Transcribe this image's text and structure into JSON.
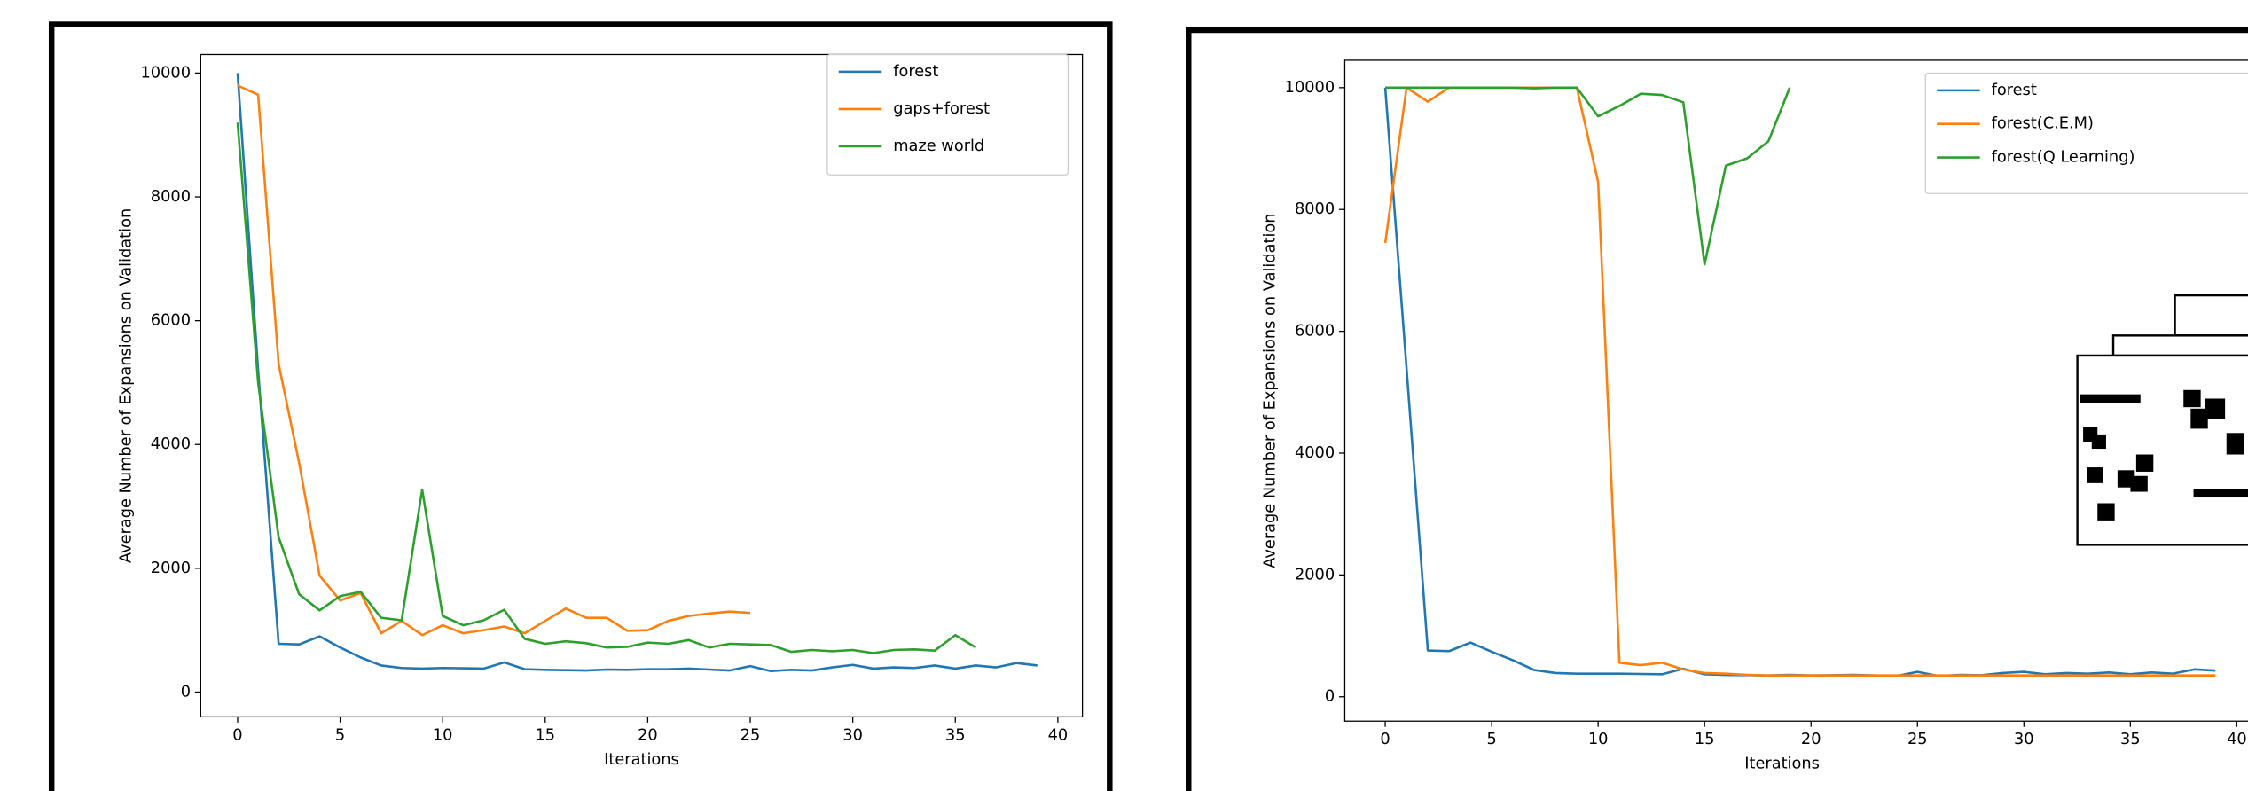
{
  "chart_data": [
    {
      "type": "line",
      "xlabel": "Iterations",
      "ylabel": "Average Number of Expansions on Validation",
      "xlim": [
        -1.8,
        41.2
      ],
      "ylim": [
        -400,
        10300
      ],
      "xticks": [
        0,
        5,
        10,
        15,
        20,
        25,
        30,
        35,
        40
      ],
      "yticks": [
        0,
        2000,
        4000,
        6000,
        8000,
        10000
      ],
      "legend": "upper right",
      "series": [
        {
          "name": "forest",
          "color": "#1f77b4",
          "x": [
            0,
            1,
            2,
            3,
            4,
            5,
            6,
            7,
            8,
            9,
            10,
            11,
            12,
            13,
            14,
            15,
            16,
            17,
            18,
            19,
            20,
            21,
            22,
            23,
            24,
            25,
            26,
            27,
            28,
            29,
            30,
            31,
            32,
            33,
            34,
            35,
            36,
            37,
            38,
            39
          ],
          "values": [
            10000,
            5200,
            780,
            770,
            900,
            720,
            560,
            430,
            390,
            380,
            390,
            385,
            380,
            480,
            370,
            360,
            355,
            350,
            365,
            360,
            370,
            370,
            380,
            365,
            350,
            420,
            340,
            360,
            350,
            400,
            440,
            380,
            400,
            390,
            430,
            380,
            430,
            400,
            470,
            430
          ]
        },
        {
          "name": "gaps+forest",
          "color": "#ff7f0e",
          "x": [
            0,
            1,
            2,
            3,
            4,
            5,
            6,
            7,
            8,
            9,
            10,
            11,
            12,
            13,
            14,
            15,
            16,
            17,
            18,
            19,
            20,
            21,
            22,
            23,
            24,
            25
          ],
          "values": [
            9800,
            9650,
            5300,
            3700,
            1880,
            1480,
            1600,
            950,
            1150,
            920,
            1080,
            950,
            1000,
            1060,
            950,
            1150,
            1350,
            1200,
            1200,
            990,
            1000,
            1150,
            1230,
            1270,
            1300,
            1280
          ]
        },
        {
          "name": "maze world",
          "color": "#2ca02c",
          "x": [
            0,
            1,
            2,
            3,
            4,
            5,
            6,
            7,
            8,
            9,
            10,
            11,
            12,
            13,
            14,
            15,
            16,
            17,
            18,
            19,
            20,
            21,
            22,
            23,
            24,
            25,
            26,
            27,
            28,
            29,
            30,
            31,
            32,
            33,
            34,
            35,
            36
          ],
          "values": [
            9200,
            5000,
            2500,
            1580,
            1320,
            1550,
            1620,
            1200,
            1160,
            3270,
            1230,
            1080,
            1160,
            1330,
            860,
            780,
            820,
            790,
            720,
            730,
            800,
            780,
            840,
            720,
            780,
            770,
            760,
            650,
            680,
            660,
            680,
            630,
            680,
            690,
            670,
            920,
            720
          ]
        }
      ]
    },
    {
      "type": "line",
      "xlabel": "Iterations",
      "ylabel": "Average Number of Expansions on Validation",
      "xlim": [
        -1.9,
        40.95
      ],
      "ylim": [
        -400,
        10450
      ],
      "xticks": [
        0,
        5,
        10,
        15,
        20,
        25,
        30,
        35,
        40
      ],
      "yticks": [
        0,
        2000,
        4000,
        6000,
        8000,
        10000
      ],
      "legend": "upper right",
      "series": [
        {
          "name": "forest",
          "color": "#1f77b4",
          "x": [
            0,
            1,
            2,
            3,
            4,
            5,
            6,
            7,
            8,
            9,
            10,
            11,
            12,
            13,
            14,
            15,
            16,
            17,
            18,
            19,
            20,
            21,
            22,
            23,
            24,
            25,
            26,
            27,
            28,
            29,
            30,
            31,
            32,
            33,
            34,
            35,
            36,
            37,
            38,
            39
          ],
          "values": [
            10000,
            5400,
            760,
            750,
            890,
            740,
            600,
            440,
            390,
            380,
            380,
            380,
            375,
            370,
            460,
            370,
            360,
            355,
            350,
            360,
            350,
            355,
            360,
            350,
            340,
            410,
            340,
            360,
            355,
            390,
            410,
            370,
            390,
            380,
            400,
            370,
            400,
            380,
            450,
            430
          ]
        },
        {
          "name": "forest(C.E.M)",
          "color": "#ff7f0e",
          "x": [
            0,
            1,
            2,
            3,
            4,
            5,
            6,
            7,
            8,
            9,
            10,
            11,
            12,
            13,
            14,
            15,
            16,
            17,
            18,
            19,
            20,
            21,
            22,
            23,
            24,
            25,
            26,
            27,
            28,
            29,
            30,
            31,
            32,
            33,
            34,
            35,
            36,
            37,
            38,
            39
          ],
          "values": [
            7450,
            10000,
            9770,
            10000,
            10000,
            10000,
            10000,
            10000,
            10000,
            10000,
            8450,
            560,
            520,
            560,
            450,
            390,
            380,
            360,
            350,
            350,
            350,
            350,
            350,
            350,
            350,
            350,
            350,
            350,
            350,
            350,
            350,
            350,
            350,
            350,
            350,
            350,
            350,
            350,
            350,
            350
          ]
        },
        {
          "name": "forest(Q Learning)",
          "color": "#2ca02c",
          "x": [
            0,
            1,
            2,
            3,
            4,
            5,
            6,
            7,
            8,
            9,
            10,
            11,
            12,
            13,
            14,
            15,
            16,
            17,
            18,
            19
          ],
          "values": [
            10000,
            10000,
            10000,
            10000,
            10000,
            10000,
            10000,
            9990,
            10000,
            10000,
            9530,
            9700,
            9900,
            9880,
            9760,
            7100,
            8720,
            8840,
            9120,
            10000
          ]
        }
      ]
    }
  ]
}
